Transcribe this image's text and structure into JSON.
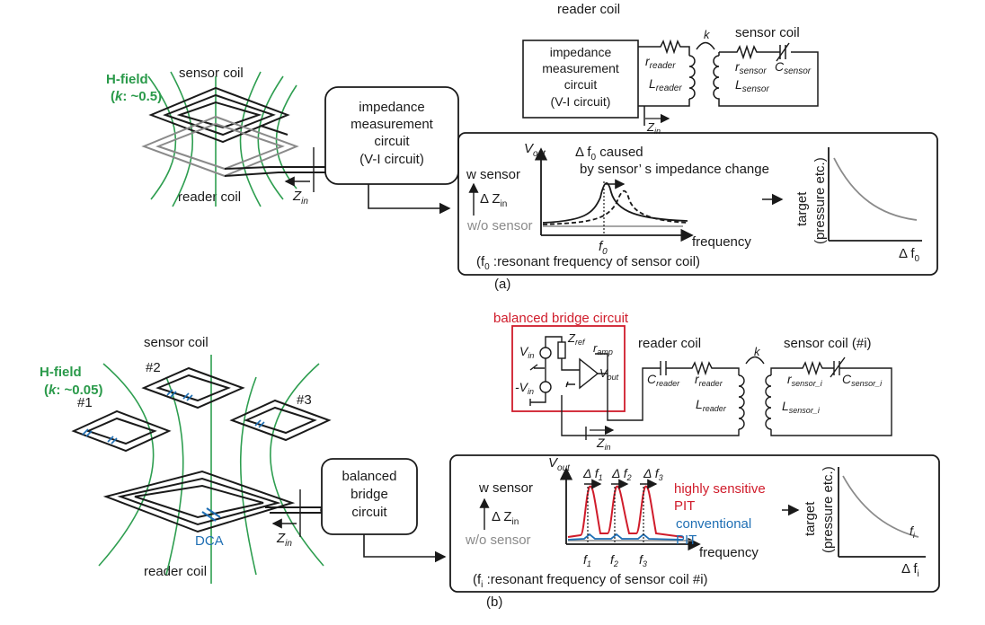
{
  "colors": {
    "hfield": "#2e9e50",
    "bridge": "#d01c2b",
    "highly_sensitive": "#d01c2b",
    "conventional": "#1f6fb4",
    "dca": "#1f6fb4",
    "gray": "#8a8a8a"
  },
  "panel_a": {
    "caption": "(a)",
    "hfield_label": "H-field",
    "k_label": "k",
    "k_value": ": ~0.5)",
    "paren_open": "(",
    "sensor_coil": "sensor coil",
    "reader_coil": "reader coil",
    "zin": "Z",
    "zin_sub": "in",
    "box_line1": "impedance",
    "box_line2": "measurement",
    "box_line3": "circuit",
    "box_line4": "(V-I circuit)",
    "schematic": {
      "reader_coil": "reader coil",
      "sensor_coil": "sensor coil",
      "box_line1": "impedance",
      "box_line2": "measurement",
      "box_line3": "circuit",
      "box_line4": "(V-I circuit)",
      "k": "k",
      "r_reader": "r",
      "r_reader_sub": "reader",
      "l_reader": "L",
      "l_reader_sub": "reader",
      "r_sensor": "r",
      "r_sensor_sub": "sensor",
      "l_sensor": "L",
      "l_sensor_sub": "sensor",
      "c_sensor": "C",
      "c_sensor_sub": "sensor",
      "zin": "Z",
      "zin_sub": "in"
    },
    "graph": {
      "vout": "V",
      "vout_sub": "out",
      "delta_f0": "Δ f",
      "delta_f0_sub": "0",
      "caused": " caused",
      "by_line": "by sensor’ s impedance change",
      "w_sensor": "w sensor",
      "delta_zin": "Δ Z",
      "delta_zin_sub": "in",
      "wo_sensor": "w/o sensor",
      "f0": "f",
      "f0_sub": "0",
      "frequency": "frequency",
      "note": "(f",
      "note_sub": "0",
      "note_rest": " :resonant frequency of sensor coil)",
      "target_line1": "target",
      "target_line2": "(pressure etc.)",
      "xaxis": "Δ f",
      "xaxis_sub": "0"
    }
  },
  "panel_b": {
    "caption": "(b)",
    "hfield_label": "H-field",
    "k_label": "k",
    "k_value": ": ~0.05)",
    "paren_open": "(",
    "sensor_coil": "sensor coil",
    "reader_coil": "reader coil",
    "coil1": "#1",
    "coil2": "#2",
    "coil3": "#3",
    "dca": "DCA",
    "zin": "Z",
    "zin_sub": "in",
    "box_line1": "balanced",
    "box_line2": "bridge",
    "box_line3": "circuit",
    "schematic": {
      "title": "balanced bridge circuit",
      "vin": "V",
      "vin_sub": "in",
      "neg_vin": "-V",
      "neg_vin_sub": "in",
      "zref": "Z",
      "zref_sub": "ref",
      "ramp": "r",
      "ramp_sub": "amp",
      "vout": "V",
      "vout_sub": "out",
      "reader_coil": "reader coil",
      "sensor_coil": "sensor coil (#i)",
      "k": "k",
      "c_reader": "C",
      "c_reader_sub": "reader",
      "r_reader": "r",
      "r_reader_sub": "reader",
      "l_reader": "L",
      "l_reader_sub": "reader",
      "r_sensor": "r",
      "r_sensor_sub": "sensor_i",
      "l_sensor": "L",
      "l_sensor_sub": "sensor_i",
      "c_sensor": "C",
      "c_sensor_sub": "sensor_i",
      "zin": "Z",
      "zin_sub": "in"
    },
    "graph": {
      "vout": "V",
      "vout_sub": "out",
      "df1": "Δ f",
      "df1_sub": "1",
      "df2": "Δ f",
      "df2_sub": "2",
      "df3": "Δ f",
      "df3_sub": "3",
      "w_sensor": "w sensor",
      "delta_zin": "Δ Z",
      "delta_zin_sub": "in",
      "wo_sensor": "w/o sensor",
      "highly_line1": "highly sensitive",
      "highly_line2": "PIT",
      "conv_line1": "conventional",
      "conv_line2": "PIT",
      "frequency": "frequency",
      "f1": "f",
      "f1_sub": "1",
      "f2": "f",
      "f2_sub": "2",
      "f3": "f",
      "f3_sub": "3",
      "note": "(f",
      "note_sub": "i",
      "note_rest": " :resonant frequency of sensor coil #i)",
      "target_line1": "target",
      "target_line2": "(pressure etc.)",
      "fi": "f",
      "fi_sub": "i",
      "xaxis": "Δ f",
      "xaxis_sub": "i"
    }
  }
}
